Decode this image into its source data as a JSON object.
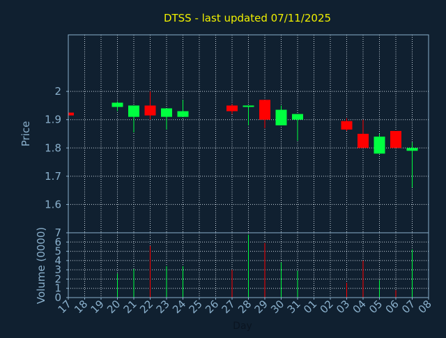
{
  "chart_data": {
    "type": "candlestick",
    "title": "DTSS - last updated 07/11/2025",
    "xlabel": "Day",
    "ylabel": "Price",
    "volume_ylabel": "Volume (0000)",
    "x_ticks": [
      "17",
      "18",
      "19",
      "20",
      "21",
      "22",
      "23",
      "24",
      "25",
      "26",
      "27",
      "28",
      "29",
      "30",
      "31",
      "01",
      "02",
      "03",
      "04",
      "05",
      "06",
      "07",
      "08"
    ],
    "price_ylim": [
      1.5,
      2.2
    ],
    "price_yticks": [
      "1.6",
      "1.7",
      "1.8",
      "1.9",
      "2"
    ],
    "volume_ylim": [
      0,
      7
    ],
    "volume_yticks": [
      "0",
      "1",
      "2",
      "3",
      "4",
      "5",
      "6",
      "7"
    ],
    "grid": true,
    "colors": {
      "background": "#102030",
      "axes": "#8ab0cc",
      "grid": "#c8d4de",
      "title": "#f0f000",
      "up": "#00ff40",
      "down": "#ff0000"
    },
    "candles": [
      {
        "day": "17",
        "open": 1.925,
        "close": 1.915,
        "high": 1.925,
        "low": 1.915,
        "volume": 0
      },
      {
        "day": "20",
        "open": 1.945,
        "close": 1.96,
        "high": 1.965,
        "low": 1.93,
        "volume": 2.6
      },
      {
        "day": "21",
        "open": 1.91,
        "close": 1.95,
        "high": 1.95,
        "low": 1.855,
        "volume": 3.1
      },
      {
        "day": "22",
        "open": 1.95,
        "close": 1.915,
        "high": 2.0,
        "low": 1.9,
        "volume": 5.6
      },
      {
        "day": "23",
        "open": 1.91,
        "close": 1.94,
        "high": 1.94,
        "low": 1.865,
        "volume": 3.4
      },
      {
        "day": "24",
        "open": 1.91,
        "close": 1.93,
        "high": 1.97,
        "low": 1.91,
        "volume": 3.4
      },
      {
        "day": "27",
        "open": 1.95,
        "close": 1.93,
        "high": 1.955,
        "low": 1.92,
        "volume": 3.0
      },
      {
        "day": "28",
        "open": 1.945,
        "close": 1.95,
        "high": 1.95,
        "low": 1.88,
        "volume": 6.8
      },
      {
        "day": "29",
        "open": 1.97,
        "close": 1.9,
        "high": 1.97,
        "low": 1.87,
        "volume": 5.9
      },
      {
        "day": "30",
        "open": 1.88,
        "close": 1.935,
        "high": 1.95,
        "low": 1.88,
        "volume": 3.8
      },
      {
        "day": "31",
        "open": 1.9,
        "close": 1.92,
        "high": 1.92,
        "low": 1.825,
        "volume": 2.9
      },
      {
        "day": "03",
        "open": 1.895,
        "close": 1.865,
        "high": 1.905,
        "low": 1.86,
        "volume": 1.6
      },
      {
        "day": "04",
        "open": 1.85,
        "close": 1.8,
        "high": 1.9,
        "low": 1.8,
        "volume": 4.0
      },
      {
        "day": "05",
        "open": 1.78,
        "close": 1.84,
        "high": 1.85,
        "low": 1.78,
        "volume": 1.9
      },
      {
        "day": "06",
        "open": 1.86,
        "close": 1.8,
        "high": 1.86,
        "low": 1.8,
        "volume": 0.8
      },
      {
        "day": "07",
        "open": 1.79,
        "close": 1.8,
        "high": 1.82,
        "low": 1.66,
        "volume": 5.2
      }
    ]
  }
}
